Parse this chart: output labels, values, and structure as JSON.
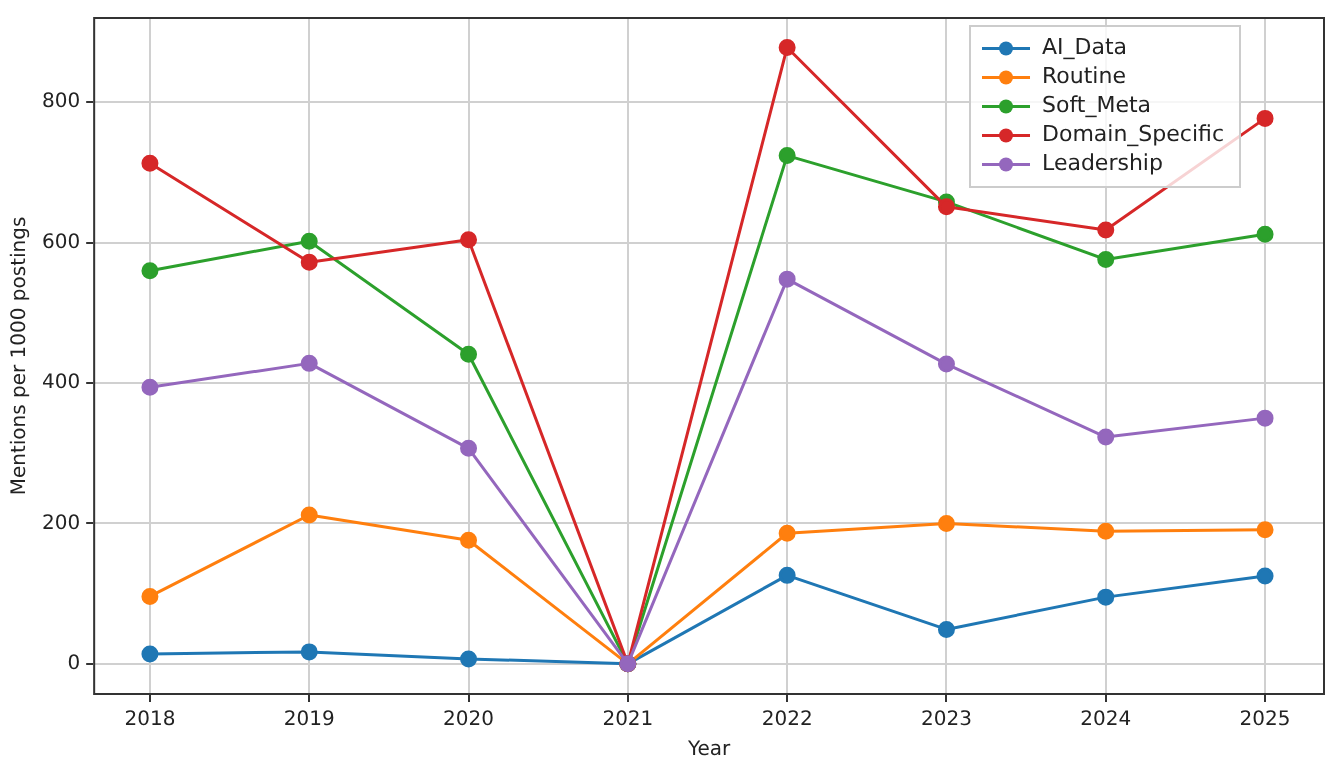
{
  "chart_data": {
    "type": "line",
    "xlabel": "Year",
    "ylabel": "Mentions per 1000 postings",
    "x": [
      2018,
      2019,
      2020,
      2021,
      2022,
      2023,
      2024,
      2025
    ],
    "series": [
      {
        "name": "AI_Data",
        "color": "#1f77b4",
        "values": [
          14,
          17,
          7,
          0,
          126,
          49,
          95,
          125
        ]
      },
      {
        "name": "Routine",
        "color": "#ff7f0e",
        "values": [
          96,
          212,
          176,
          0,
          186,
          200,
          189,
          191
        ]
      },
      {
        "name": "Soft_Meta",
        "color": "#2ca02c",
        "values": [
          560,
          602,
          441,
          0,
          724,
          658,
          576,
          612
        ]
      },
      {
        "name": "Domain_Specific",
        "color": "#d62728",
        "values": [
          713,
          572,
          604,
          0,
          878,
          651,
          618,
          777
        ]
      },
      {
        "name": "Leadership",
        "color": "#9467bd",
        "values": [
          394,
          428,
          307,
          0,
          548,
          427,
          323,
          350
        ]
      }
    ],
    "xlim": [
      2017.65,
      2025.37
    ],
    "xticks": [
      2018,
      2019,
      2020,
      2021,
      2022,
      2023,
      2024,
      2025
    ],
    "ylim": [
      -43,
      920
    ],
    "yticks": [
      0,
      200,
      400,
      600,
      800
    ],
    "grid": true,
    "legend": "top right",
    "marker": "circle",
    "line_style": "solid"
  }
}
